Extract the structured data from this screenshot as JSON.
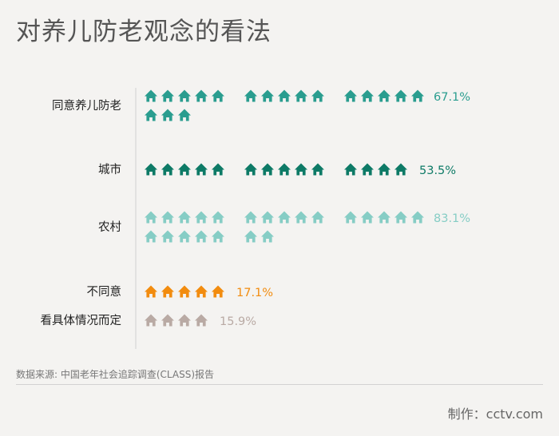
{
  "title": "对养儿防老观念的看法",
  "source": "数据来源: 中国老年社会追踪调查(CLASS)报告",
  "credit": "制作：cctv.com",
  "colors": {
    "teal": "#2a9d8f",
    "dark_teal": "#0d7a66",
    "light_teal": "#86cdc5",
    "orange": "#f28c0f",
    "gray": "#b9aaa4",
    "axis": "#dcdcdc",
    "label": "#222222"
  },
  "chart_data": {
    "type": "pictograph",
    "icon": "house-icon",
    "unit_percent": 1,
    "categories": [
      "同意养儿防老",
      "城市",
      "农村",
      "不同意",
      "看具体情况而定"
    ],
    "values": [
      67.1,
      53.5,
      83.1,
      17.1,
      15.9
    ],
    "value_labels": [
      "67.1%",
      "53.5%",
      "83.1%",
      "17.1%",
      "15.9%"
    ]
  }
}
